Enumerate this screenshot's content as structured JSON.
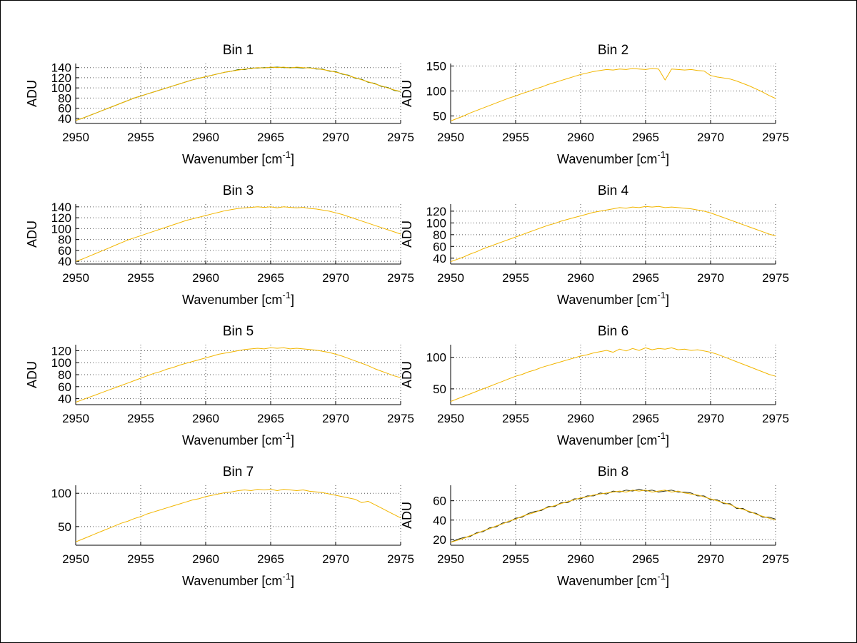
{
  "figure": {
    "background": "#ffffff",
    "xlabel_base": "Wavenumber [cm",
    "xlabel_sup": "-1",
    "xlabel_close": "]",
    "x_start": 2950,
    "x_step": 0.5,
    "xlim": [
      2950,
      2975
    ],
    "x_ticks": [
      2950,
      2955,
      2960,
      2965,
      2970,
      2975
    ],
    "grid_color": "#555555",
    "axis_color": "#000000",
    "line_color": "#f2b600"
  },
  "chart_data": [
    {
      "type": "line",
      "title": "Bin 1",
      "ylabel": "ADU",
      "ylim": [
        30,
        148
      ],
      "y_ticks": [
        40,
        60,
        80,
        100,
        120,
        140
      ],
      "series": [
        {
          "name": "trace-dark",
          "color": "#336600",
          "values": [
            36,
            40,
            45,
            50,
            55,
            60,
            65,
            70,
            75,
            80,
            84,
            88,
            92,
            96,
            100,
            104,
            108,
            112,
            116,
            119,
            122,
            125,
            128,
            131,
            133,
            136,
            136,
            139,
            139,
            140,
            140,
            141,
            140,
            140,
            140,
            139,
            140,
            137,
            137,
            133,
            132,
            127,
            125,
            119,
            117,
            111,
            109,
            103,
            101,
            95,
            93
          ]
        },
        {
          "name": "trace-yellow",
          "color": "#f2b600",
          "values": [
            36,
            40,
            45,
            50,
            55,
            60,
            65,
            70,
            75,
            80,
            84,
            88,
            92,
            96,
            100,
            104,
            108,
            112,
            116,
            119,
            122,
            125,
            128,
            131,
            133,
            135,
            137,
            138,
            140,
            139,
            141,
            140,
            141,
            139,
            141,
            140,
            139,
            138,
            136,
            134,
            131,
            128,
            124,
            120,
            116,
            112,
            108,
            104,
            100,
            96,
            93
          ]
        }
      ]
    },
    {
      "type": "line",
      "title": "Bin 2",
      "ylabel": "ADU",
      "ylim": [
        35,
        155
      ],
      "y_ticks": [
        50,
        100,
        150
      ],
      "series": [
        {
          "name": "trace-yellow",
          "color": "#f2b600",
          "values": [
            40,
            45,
            50,
            56,
            61,
            66,
            71,
            76,
            81,
            86,
            90,
            95,
            99,
            104,
            108,
            113,
            117,
            121,
            125,
            129,
            133,
            136,
            139,
            141,
            143,
            142,
            144,
            143,
            145,
            144,
            143,
            145,
            144,
            122,
            144,
            143,
            142,
            143,
            141,
            140,
            131,
            128,
            126,
            124,
            120,
            115,
            110,
            104,
            98,
            91,
            85
          ]
        }
      ]
    },
    {
      "type": "line",
      "title": "Bin 3",
      "ylabel": "ADU",
      "ylim": [
        35,
        145
      ],
      "y_ticks": [
        40,
        60,
        80,
        100,
        120,
        140
      ],
      "series": [
        {
          "name": "trace-yellow",
          "color": "#f2b600",
          "values": [
            40,
            44,
            49,
            54,
            59,
            64,
            69,
            74,
            79,
            83,
            87,
            91,
            95,
            99,
            103,
            107,
            111,
            115,
            118,
            121,
            124,
            127,
            130,
            133,
            135,
            137,
            138,
            139,
            140,
            139,
            140,
            138,
            140,
            139,
            138,
            139,
            137,
            136,
            134,
            132,
            129,
            126,
            122,
            118,
            114,
            110,
            106,
            102,
            98,
            94,
            90
          ]
        }
      ]
    },
    {
      "type": "line",
      "title": "Bin 4",
      "ylabel": "ADU",
      "ylim": [
        30,
        132
      ],
      "y_ticks": [
        40,
        60,
        80,
        100,
        120
      ],
      "series": [
        {
          "name": "trace-yellow",
          "color": "#f2b600",
          "values": [
            34,
            38,
            42,
            47,
            51,
            56,
            60,
            64,
            68,
            72,
            76,
            80,
            84,
            88,
            92,
            96,
            99,
            103,
            106,
            109,
            112,
            115,
            118,
            120,
            122,
            124,
            126,
            125,
            127,
            126,
            128,
            127,
            128,
            126,
            127,
            126,
            125,
            124,
            122,
            120,
            117,
            113,
            109,
            105,
            101,
            97,
            93,
            89,
            85,
            81,
            78
          ]
        }
      ]
    },
    {
      "type": "line",
      "title": "Bin 5",
      "ylabel": "ADU",
      "ylim": [
        30,
        130
      ],
      "y_ticks": [
        40,
        60,
        80,
        100,
        120
      ],
      "series": [
        {
          "name": "trace-yellow",
          "color": "#f2b600",
          "values": [
            34,
            38,
            42,
            46,
            50,
            54,
            58,
            62,
            66,
            70,
            74,
            78,
            82,
            85,
            89,
            92,
            96,
            99,
            102,
            105,
            108,
            111,
            114,
            116,
            118,
            120,
            122,
            123,
            124,
            123,
            125,
            124,
            125,
            123,
            124,
            123,
            122,
            121,
            119,
            117,
            114,
            111,
            107,
            103,
            99,
            95,
            90,
            86,
            82,
            78,
            75
          ]
        }
      ]
    },
    {
      "type": "line",
      "title": "Bin 6",
      "ylabel": "ADU",
      "ylim": [
        25,
        120
      ],
      "y_ticks": [
        50,
        100
      ],
      "series": [
        {
          "name": "trace-yellow",
          "color": "#f2b600",
          "values": [
            30,
            34,
            38,
            42,
            46,
            50,
            54,
            58,
            62,
            66,
            70,
            73,
            77,
            80,
            84,
            87,
            90,
            93,
            96,
            99,
            102,
            104,
            107,
            109,
            111,
            108,
            113,
            110,
            114,
            111,
            115,
            112,
            114,
            113,
            115,
            112,
            113,
            111,
            112,
            110,
            108,
            105,
            101,
            97,
            93,
            89,
            85,
            81,
            77,
            73,
            70
          ]
        }
      ]
    },
    {
      "type": "line",
      "title": "Bin 7",
      "ylabel": "",
      "ylim": [
        22,
        112
      ],
      "y_ticks": [
        50,
        100
      ],
      "series": [
        {
          "name": "trace-yellow",
          "color": "#f2b600",
          "values": [
            27,
            31,
            35,
            39,
            43,
            47,
            51,
            55,
            58,
            62,
            65,
            69,
            72,
            75,
            78,
            81,
            84,
            87,
            90,
            92,
            95,
            97,
            99,
            101,
            102,
            104,
            105,
            104,
            106,
            105,
            106,
            104,
            106,
            105,
            104,
            105,
            103,
            102,
            101,
            99,
            97,
            95,
            93,
            91,
            86,
            88,
            83,
            78,
            73,
            68,
            63
          ]
        }
      ]
    },
    {
      "type": "line",
      "title": "Bin 8",
      "ylabel": "ADU",
      "ylim": [
        14,
        76
      ],
      "y_ticks": [
        20,
        40,
        60
      ],
      "series": [
        {
          "name": "trace-dark",
          "color": "#333311",
          "values": [
            17,
            20,
            22,
            23,
            27,
            28,
            32,
            33,
            37,
            38,
            42,
            43,
            47,
            49,
            50,
            54,
            54,
            58,
            58,
            62,
            62,
            65,
            65,
            68,
            67,
            70,
            69,
            71,
            70,
            72,
            70,
            71,
            69,
            70,
            71,
            69,
            69,
            68,
            65,
            65,
            61,
            61,
            57,
            57,
            52,
            52,
            48,
            47,
            43,
            43,
            41
          ]
        },
        {
          "name": "trace-yellow",
          "color": "#f2b600",
          "values": [
            17,
            19,
            21,
            24,
            26,
            29,
            31,
            34,
            36,
            39,
            41,
            44,
            46,
            48,
            51,
            53,
            55,
            57,
            59,
            61,
            63,
            64,
            66,
            67,
            68,
            69,
            70,
            69,
            71,
            70,
            71,
            69,
            70,
            71,
            69,
            70,
            68,
            67,
            66,
            64,
            62,
            60,
            58,
            56,
            53,
            51,
            49,
            46,
            44,
            42,
            40
          ]
        }
      ]
    }
  ]
}
